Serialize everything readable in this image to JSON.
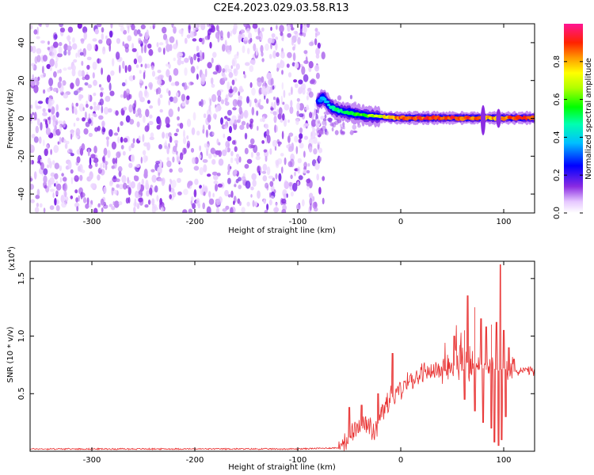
{
  "title": "C2E4.2023.029.03.58.R13",
  "chart_data": [
    {
      "type": "heatmap",
      "xlabel": "Height of straight line (km)",
      "ylabel": "Frequency (Hz)",
      "xlim": [
        -360,
        130
      ],
      "ylim": [
        -50,
        50
      ],
      "x_ticks": [
        -300,
        -200,
        -100,
        0,
        100
      ],
      "y_ticks": [
        -40,
        -20,
        0,
        20,
        40
      ],
      "noise_region_x": [
        -360,
        -75
      ],
      "signal_ridge": {
        "x": [
          -80,
          -75,
          -70,
          -65,
          -60,
          -55,
          -50,
          -45,
          -40,
          -35,
          -30,
          -25,
          -20,
          -15,
          -10,
          -5,
          0,
          10,
          20,
          30,
          40,
          50,
          60,
          70,
          80,
          90,
          100,
          110,
          120,
          130
        ],
        "y": [
          9,
          11,
          7,
          5,
          4,
          3.5,
          3,
          2.5,
          2,
          1.5,
          1.2,
          1,
          0.8,
          0.6,
          0.5,
          0.3,
          0.2,
          0.2,
          0.2,
          0.2,
          0.2,
          0.2,
          0.2,
          0.2,
          0.2,
          0.2,
          0.2,
          0.2,
          0.2,
          0.2
        ],
        "amplitude": [
          0.3,
          0.4,
          0.45,
          0.5,
          0.55,
          0.55,
          0.55,
          0.6,
          0.6,
          0.65,
          0.7,
          0.7,
          0.75,
          0.8,
          0.85,
          0.9,
          0.95,
          0.95,
          0.95,
          0.95,
          0.95,
          0.95,
          0.95,
          0.95,
          0.9,
          0.9,
          0.9,
          0.95,
          0.95,
          0.95
        ]
      },
      "colorbar": {
        "label": "Normalized spectral amplitude",
        "range": [
          0,
          1
        ],
        "ticks": [
          0.0,
          0.2,
          0.4,
          0.6,
          0.8
        ],
        "tick_labels": [
          "0.0",
          "0.2",
          "0.4",
          "0.6",
          "0.8"
        ]
      }
    },
    {
      "type": "line",
      "xlabel": "Height of straight line (km)",
      "ylabel": "SNR (10 * v/v)",
      "multiplier": "(x10",
      "multiplier_exp": "4",
      "multiplier_close": ")",
      "xlim": [
        -360,
        130
      ],
      "ylim": [
        0,
        1.65
      ],
      "x_ticks": [
        -300,
        -200,
        -100,
        0,
        100
      ],
      "y_ticks": [
        0.5,
        1.0,
        1.5
      ],
      "y_tick_labels": [
        "0.5",
        "1.0",
        "1.5"
      ],
      "series": [
        {
          "color": "#e83030",
          "x": [
            -360,
            -300,
            -200,
            -100,
            -60,
            -50,
            -45,
            -40,
            -35,
            -30,
            -25,
            -20,
            -15,
            -10,
            -5,
            0,
            10,
            20,
            30,
            40,
            50,
            55,
            60,
            65,
            70,
            75,
            80,
            85,
            90,
            95,
            100,
            105,
            110,
            120,
            130
          ],
          "y": [
            0.02,
            0.02,
            0.02,
            0.02,
            0.03,
            0.12,
            0.2,
            0.22,
            0.22,
            0.25,
            0.15,
            0.3,
            0.4,
            0.45,
            0.5,
            0.55,
            0.62,
            0.67,
            0.7,
            0.72,
            0.74,
            0.75,
            0.76,
            0.77,
            0.75,
            0.8,
            0.72,
            0.7,
            0.72,
            0.7,
            0.72,
            0.7,
            0.69,
            0.7,
            0.69
          ],
          "spikes": [
            {
              "x": -50,
              "y": 0.38
            },
            {
              "x": -38,
              "y": 0.4
            },
            {
              "x": -22,
              "y": 0.5
            },
            {
              "x": -8,
              "y": 0.85
            },
            {
              "x": 8,
              "y": 0.6
            },
            {
              "x": 52,
              "y": 1.0
            },
            {
              "x": 58,
              "y": 0.92
            },
            {
              "x": 62,
              "y": 1.05
            },
            {
              "x": 65,
              "y": 1.35
            },
            {
              "x": 72,
              "y": 1.25
            },
            {
              "x": 78,
              "y": 1.15
            },
            {
              "x": 83,
              "y": 1.08
            },
            {
              "x": 88,
              "y": 1.1
            },
            {
              "x": 93,
              "y": 1.12
            },
            {
              "x": 97,
              "y": 1.62
            },
            {
              "x": 100,
              "y": 1.05
            },
            {
              "x": 105,
              "y": 0.9
            },
            {
              "x": 110,
              "y": 0.8
            }
          ],
          "dips": [
            {
              "x": 62,
              "y": 0.45
            },
            {
              "x": 72,
              "y": 0.35
            },
            {
              "x": 80,
              "y": 0.25
            },
            {
              "x": 88,
              "y": 0.2
            },
            {
              "x": 91,
              "y": 0.08
            },
            {
              "x": 95,
              "y": 0.05
            },
            {
              "x": 98,
              "y": 0.1
            },
            {
              "x": 102,
              "y": 0.3
            }
          ]
        }
      ]
    }
  ]
}
